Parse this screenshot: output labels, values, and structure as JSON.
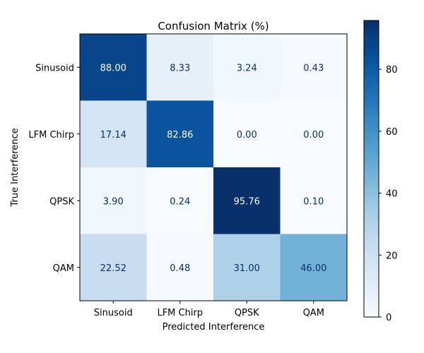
{
  "chart_data": {
    "type": "heatmap",
    "title": "Confusion Matrix (%)",
    "xlabel": "Predicted Interference",
    "ylabel": "True Interference",
    "x_categories": [
      "Sinusoid",
      "LFM Chirp",
      "QPSK",
      "QAM"
    ],
    "y_categories": [
      "Sinusoid",
      "LFM Chirp",
      "QPSK",
      "QAM"
    ],
    "values": [
      [
        88.0,
        8.33,
        3.24,
        0.43
      ],
      [
        17.14,
        82.86,
        0.0,
        0.0
      ],
      [
        3.9,
        0.24,
        95.76,
        0.1
      ],
      [
        22.52,
        0.48,
        31.0,
        46.0
      ]
    ],
    "value_labels": [
      [
        "88.00",
        "8.33",
        "3.24",
        "0.43"
      ],
      [
        "17.14",
        "82.86",
        "0.00",
        "0.00"
      ],
      [
        "3.90",
        "0.24",
        "95.76",
        "0.10"
      ],
      [
        "22.52",
        "0.48",
        "31.00",
        "46.00"
      ]
    ],
    "colormap": "Blues",
    "color_range": [
      0,
      95.76
    ],
    "colorbar_ticks": [
      0,
      20,
      40,
      60,
      80
    ],
    "colorbar_tick_labels": [
      "0",
      "20",
      "40",
      "60",
      "80"
    ],
    "dark_text_color": "#08306b",
    "light_text_color": "#ffffff"
  }
}
